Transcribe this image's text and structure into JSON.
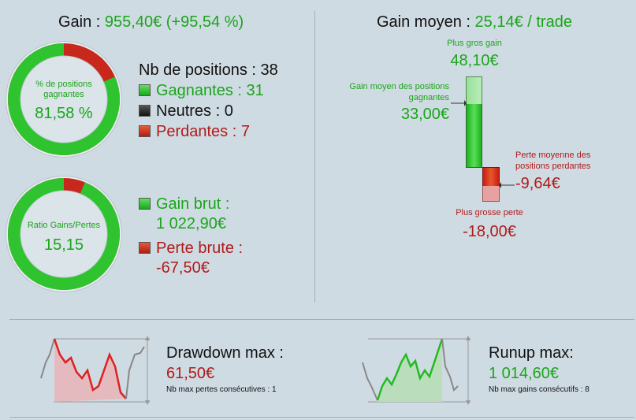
{
  "summary": {
    "gain_label": "Gain :",
    "gain_value": "955,40€ (+95,54 %)",
    "nb_positions": "Nb de positions : 38",
    "gagnantes": "Gagnantes : 31",
    "neutres": "Neutres : 0",
    "perdantes": "Perdantes : 7",
    "donut1_label": "% de positions gagnantes",
    "donut1_value": "81,58 %",
    "donut1_fraction": 0.8158,
    "donut2_label": "Ratio Gains/Pertes",
    "donut2_value": "15,15",
    "donut2_fraction": 0.9381,
    "gain_brut_label": "Gain brut :",
    "gain_brut_value": "1 022,90€",
    "perte_brute_label": "Perte brute :",
    "perte_brute_value": "-67,50€"
  },
  "average": {
    "title_label": "Gain moyen :",
    "title_value": "25,14€ / trade",
    "max_gain_label": "Plus gros gain",
    "max_gain_value": "48,10€",
    "avg_win_label": "Gain moyen des positions gagnantes",
    "avg_win_value": "33,00€",
    "avg_loss_label": "Perte moyenne des positions perdantes",
    "avg_loss_value": "-9,64€",
    "max_loss_label": "Plus grosse perte",
    "max_loss_value": "-18,00€"
  },
  "drawdown": {
    "title": "Drawdown max :",
    "value": "61,50€",
    "note": "Nb max pertes consécutives : 1"
  },
  "runup": {
    "title": "Runup max:",
    "value": "1 014,60€",
    "note": "Nb max gains consécutifs : 8"
  },
  "colors": {
    "green": "#1aa51a",
    "red": "#b11a1a",
    "background": "#cfdbe2"
  }
}
